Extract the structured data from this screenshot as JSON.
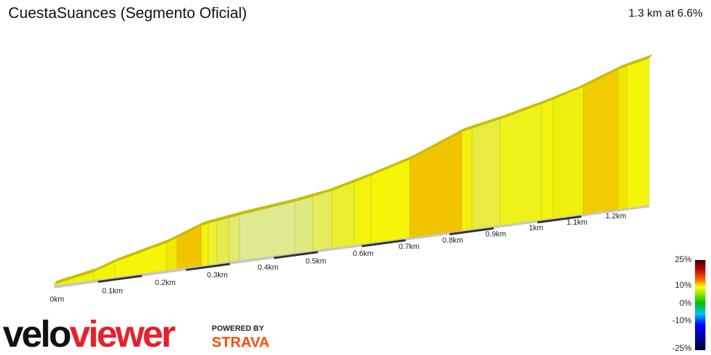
{
  "header": {
    "title": "CuestaSuances (Segmento Oficial)",
    "summary": "1.3 km at 6.6%"
  },
  "distance_labels": [
    "0km",
    "0.1km",
    "0.2km",
    "0.3km",
    "0.4km",
    "0.5km",
    "0.6km",
    "0.7km",
    "0.8km",
    "0.9km",
    "1km",
    "1.1km",
    "1.2km"
  ],
  "gradient_legend": [
    "25%",
    "10%",
    "0%",
    "-10%",
    "-25%"
  ],
  "branding": {
    "logo_left": "velo",
    "logo_right": "viewer",
    "powered_by": "POWERED BY",
    "strava": "STRAVA"
  }
}
